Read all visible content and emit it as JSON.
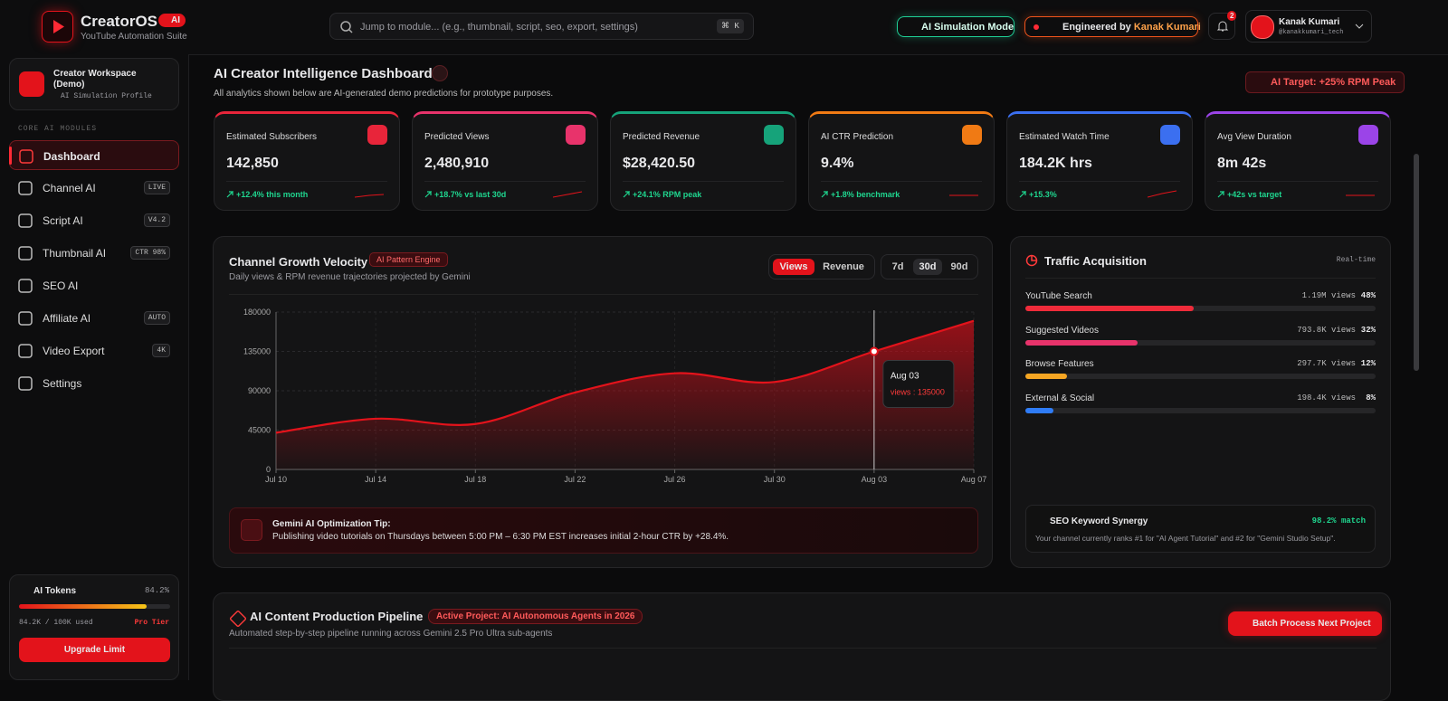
{
  "header": {
    "brand": "CreatorOS",
    "badge": "AI",
    "tagline": "YouTube Automation Suite",
    "search": "Jump to module... (e.g., thumbnail, script, seo, export, settings)",
    "shortcut": "⌘ K",
    "sim_mode": "AI Simulation Mode",
    "engineered_by": "Engineered by",
    "engineer": "Kanak Kumari",
    "notifications": "2",
    "user_name": "Kanak Kumari",
    "user_handle": "@kanakkumari_tech"
  },
  "sidebar": {
    "workspace": "Creator Workspace (Demo)",
    "profile": "AI Simulation Profile",
    "section": "CORE AI MODULES",
    "nav": [
      {
        "label": "Dashboard"
      },
      {
        "label": "Channel AI",
        "badge": "LIVE"
      },
      {
        "label": "Script AI",
        "badge": "V4.2"
      },
      {
        "label": "Thumbnail AI",
        "badge": "CTR 98%"
      },
      {
        "label": "SEO AI"
      },
      {
        "label": "Affiliate AI",
        "badge": "AUTO"
      },
      {
        "label": "Video Export",
        "badge": "4K"
      },
      {
        "label": "Settings"
      }
    ],
    "tokens": {
      "title": "AI Tokens",
      "percent": 84.2,
      "percent_label": "84.2%",
      "used": "84.2K / 100K used",
      "tier": "Pro Tier",
      "button": "Upgrade Limit"
    }
  },
  "dashboard": {
    "title": "AI Creator Intelligence Dashboard",
    "subtitle": "All analytics shown below are AI-generated demo predictions for prototype purposes.",
    "target": "AI Target: +25% RPM Peak"
  },
  "kpis": [
    {
      "label": "Estimated Subscribers",
      "value": "142,850",
      "delta": "+12.4% this month",
      "color": "#e8253a"
    },
    {
      "label": "Predicted Views",
      "value": "2,480,910",
      "delta": "+18.7% vs last 30d",
      "color": "#e8336b"
    },
    {
      "label": "Predicted Revenue",
      "value": "$28,420.50",
      "delta": "+24.1% RPM peak",
      "color": "#16a37a"
    },
    {
      "label": "AI CTR Prediction",
      "value": "9.4%",
      "delta": "+1.8% benchmark",
      "color": "#f07a14"
    },
    {
      "label": "Estimated Watch Time",
      "value": "184.2K hrs",
      "delta": "+15.3%",
      "color": "#3b6ff0"
    },
    {
      "label": "Avg View Duration",
      "value": "8m 42s",
      "delta": "+42s vs target",
      "color": "#9b44e8"
    }
  ],
  "growth": {
    "title": "Channel Growth Velocity",
    "badge": "AI Pattern Engine",
    "subtitle": "Daily views & RPM revenue trajectories projected by Gemini",
    "toggles": [
      "Views",
      "Revenue"
    ],
    "ranges": [
      "7d",
      "30d",
      "90d"
    ],
    "tip_title": "Gemini AI Optimization Tip:",
    "tip_text": "Publishing video tutorials on Thursdays between 5:00 PM – 6:30 PM EST increases initial 2-hour CTR by +28.4%."
  },
  "chart_data": {
    "type": "line",
    "categories": [
      "Jul 10",
      "Jul 14",
      "Jul 18",
      "Jul 22",
      "Jul 26",
      "Jul 30",
      "Aug 03",
      "Aug 07"
    ],
    "values": [
      42000,
      58000,
      52000,
      88000,
      110000,
      100000,
      135000,
      170000
    ],
    "color": "#e3131b",
    "ylim": [
      0,
      180000
    ],
    "yticks": [
      0,
      45000,
      90000,
      135000,
      180000
    ],
    "grid": true,
    "tooltip": {
      "x": "Aug 03",
      "text": "views : 135000"
    }
  },
  "traffic": {
    "title": "Traffic Acquisition",
    "status": "Real-time",
    "sources": [
      {
        "name": "YouTube Search",
        "views": "1.19M views",
        "share": 48,
        "share_label": "48%",
        "color": "#ef2b3a"
      },
      {
        "name": "Suggested Videos",
        "views": "793.8K views",
        "share": 32,
        "share_label": "32%",
        "color": "#e8336b"
      },
      {
        "name": "Browse Features",
        "views": "297.7K views",
        "share": 12,
        "share_label": "12%",
        "color": "#f5a623"
      },
      {
        "name": "External & Social",
        "views": "198.4K views",
        "share": 8,
        "share_label": "8%",
        "color": "#2f7cf6"
      }
    ],
    "seo_title": "SEO Keyword Synergy",
    "seo_match": "98.2% match",
    "seo_text": "Your channel currently ranks #1 for \"AI Agent Tutorial\" and #2 for \"Gemini Studio Setup\"."
  },
  "pipeline": {
    "title": "AI Content Production Pipeline",
    "badge": "Active Project: AI Autonomous Agents in 2026",
    "subtitle": "Automated step-by-step pipeline running across Gemini 2.5 Pro Ultra sub-agents",
    "button": "Batch Process Next Project"
  }
}
